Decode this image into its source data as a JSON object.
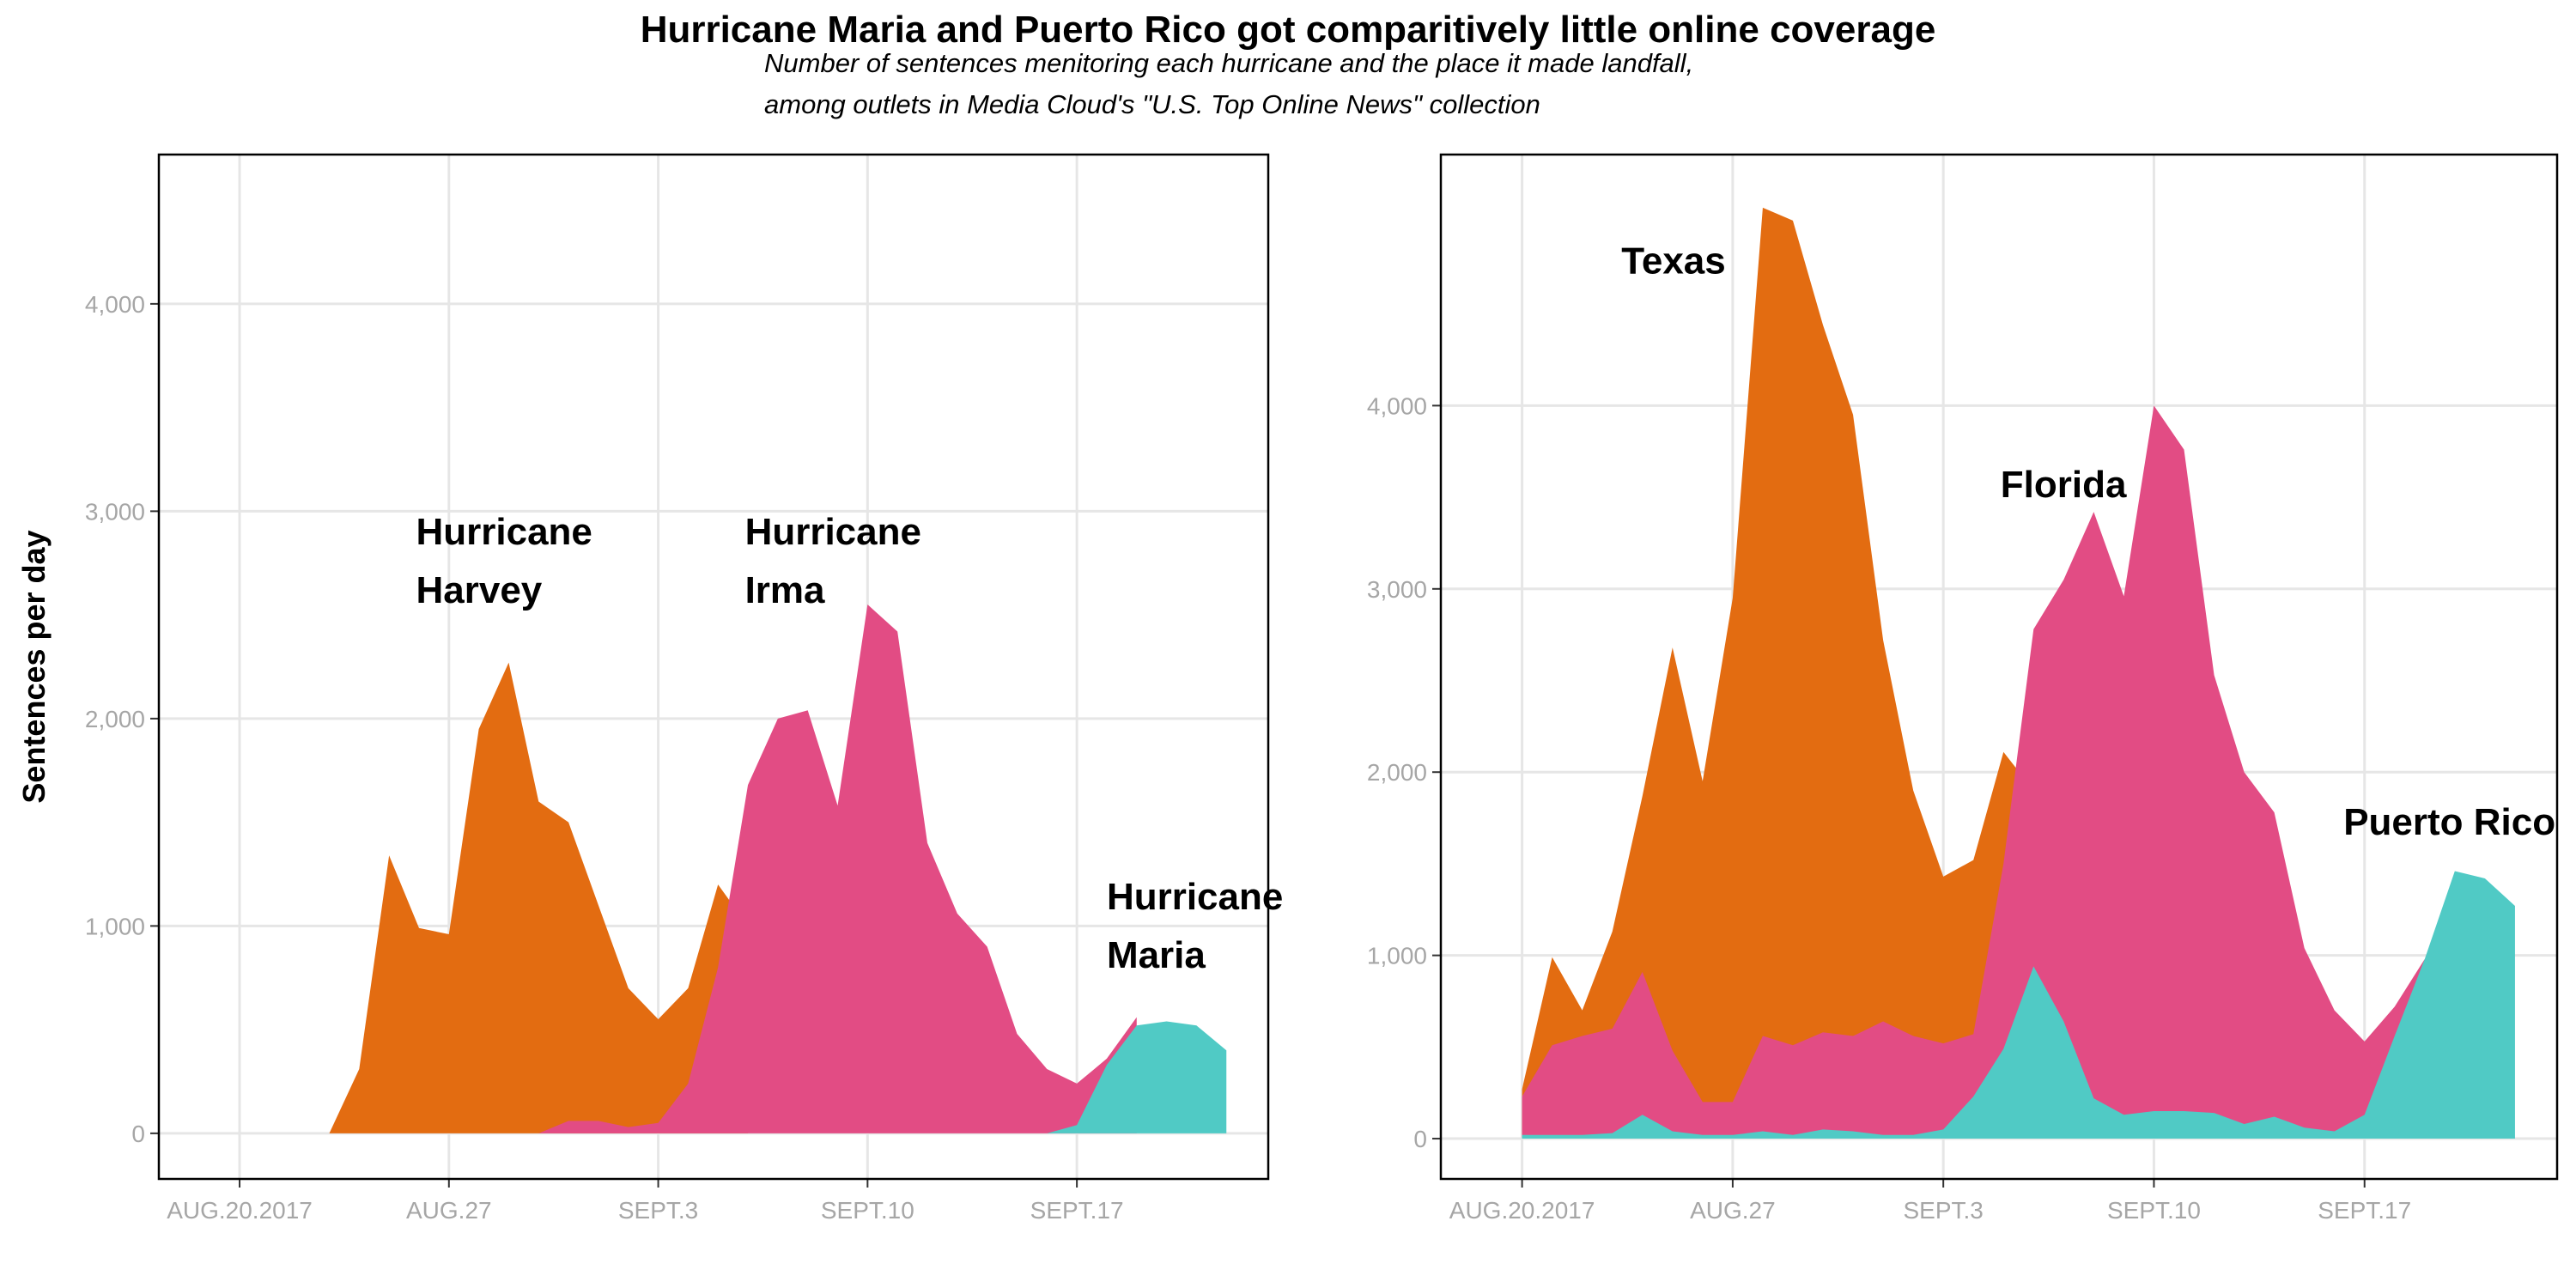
{
  "title": "Hurricane Maria and Puerto Rico got comparitively little online coverage",
  "subtitle_line1": "Number of sentences menitoring each hurricane and the place it made landfall,",
  "subtitle_line2": "among outlets in Media Cloud's \"U.S. Top Online News\" collection",
  "colors": {
    "harvey": "#e36c11",
    "irma": "#e24c84",
    "maria": "#50cac5",
    "grid": "#e6e6e6",
    "frame": "#000000"
  },
  "chart_data": [
    {
      "type": "area",
      "ylabel": "Sentences per day",
      "xlabel": "",
      "grid": true,
      "x_ticks": [
        "AUG.20.2017",
        "AUG.27",
        "SEPT.3",
        "SEPT.10",
        "SEPT.17"
      ],
      "x_tick_days": [
        0,
        7,
        14,
        21,
        28
      ],
      "xlim": [
        -2.7,
        34.4
      ],
      "ylim": [
        -220,
        4720
      ],
      "y_ticks": [
        0,
        1000,
        2000,
        3000,
        4000
      ],
      "y_tick_labels": [
        "0",
        "1,000",
        "2,000",
        "3,000",
        "4,000"
      ],
      "x_day0": "2017-08-20",
      "series": [
        {
          "name": "Hurricane Harvey",
          "color": "#e36c11",
          "x": [
            2,
            3,
            4,
            5,
            6,
            7,
            8,
            9,
            10,
            11,
            12,
            13,
            14,
            15,
            16,
            17
          ],
          "y": [
            0,
            0,
            310,
            1340,
            990,
            960,
            1950,
            2270,
            1600,
            1500,
            1100,
            700,
            550,
            700,
            1200,
            1000
          ]
        },
        {
          "name": "Hurricane Irma",
          "color": "#e24c84",
          "x": [
            10,
            11,
            12,
            13,
            14,
            15,
            16,
            17,
            18,
            19,
            20,
            21,
            22,
            23,
            24,
            25,
            26,
            27,
            28,
            29,
            30
          ],
          "y": [
            0,
            60,
            60,
            30,
            50,
            240,
            800,
            1680,
            2000,
            2040,
            1580,
            2550,
            2420,
            1400,
            1060,
            900,
            480,
            310,
            240,
            360,
            560
          ]
        },
        {
          "name": "Hurricane Maria",
          "color": "#50cac5",
          "x": [
            26,
            27,
            28,
            29,
            30,
            31,
            32,
            33
          ],
          "y": [
            0,
            0,
            40,
            330,
            520,
            540,
            520,
            400
          ]
        }
      ],
      "annotations": [
        {
          "line1": "Hurricane",
          "line2": "Harvey",
          "x": 5.9,
          "y": 2840
        },
        {
          "line1": "Hurricane",
          "line2": "Irma",
          "x": 16.9,
          "y": 2840
        },
        {
          "line1": "Hurricane",
          "line2": "Maria",
          "x": 29.0,
          "y": 1080
        }
      ]
    },
    {
      "type": "area",
      "ylabel": "",
      "xlabel": "",
      "grid": true,
      "x_ticks": [
        "AUG.20.2017",
        "AUG.27",
        "SEPT.3",
        "SEPT.10",
        "SEPT.17"
      ],
      "x_tick_days": [
        0,
        7,
        14,
        21,
        28
      ],
      "xlim": [
        -2.7,
        34.4
      ],
      "ylim": [
        -220,
        5370
      ],
      "y_ticks": [
        0,
        1000,
        2000,
        3000,
        4000
      ],
      "y_tick_labels": [
        "0",
        "1,000",
        "2,000",
        "3,000",
        "4,000"
      ],
      "x_day0": "2017-08-20",
      "series": [
        {
          "name": "Texas",
          "color": "#e36c11",
          "x": [
            0,
            1,
            2,
            3,
            4,
            5,
            6,
            7,
            8,
            9,
            10,
            11,
            12,
            13,
            14,
            15,
            16,
            17
          ],
          "y": [
            270,
            990,
            700,
            1130,
            1870,
            2680,
            1950,
            2950,
            5080,
            5010,
            4440,
            3950,
            2720,
            1900,
            1430,
            1520,
            2110,
            1900
          ]
        },
        {
          "name": "Florida",
          "color": "#e24c84",
          "x": [
            0,
            1,
            2,
            3,
            4,
            5,
            6,
            7,
            8,
            9,
            10,
            11,
            12,
            13,
            14,
            15,
            16,
            17,
            18,
            19,
            20,
            21,
            22,
            23,
            24,
            25,
            26,
            27,
            28,
            29,
            30
          ],
          "y": [
            230,
            510,
            560,
            600,
            910,
            480,
            200,
            200,
            560,
            510,
            580,
            560,
            640,
            560,
            520,
            570,
            1500,
            2780,
            3050,
            3420,
            2960,
            4000,
            3760,
            2530,
            2000,
            1780,
            1040,
            700,
            530,
            720,
            980
          ]
        },
        {
          "name": "Puerto Rico",
          "color": "#50cac5",
          "x": [
            0,
            1,
            2,
            3,
            4,
            5,
            6,
            7,
            8,
            9,
            10,
            11,
            12,
            13,
            14,
            15,
            16,
            17,
            18,
            19,
            20,
            21,
            22,
            23,
            24,
            25,
            26,
            27,
            28,
            29,
            30,
            31,
            32,
            33
          ],
          "y": [
            20,
            20,
            20,
            30,
            130,
            40,
            20,
            20,
            40,
            20,
            50,
            40,
            20,
            20,
            50,
            230,
            490,
            940,
            640,
            220,
            130,
            150,
            150,
            140,
            80,
            120,
            60,
            40,
            130,
            560,
            980,
            1460,
            1420,
            1270
          ]
        }
      ],
      "annotations": [
        {
          "line1": "Texas",
          "line2": "",
          "x": 3.3,
          "y": 4720
        },
        {
          "line1": "Florida",
          "line2": "",
          "x": 15.9,
          "y": 3500
        },
        {
          "line1": "Puerto Rico",
          "line2": "",
          "x": 27.3,
          "y": 1660
        }
      ]
    }
  ]
}
